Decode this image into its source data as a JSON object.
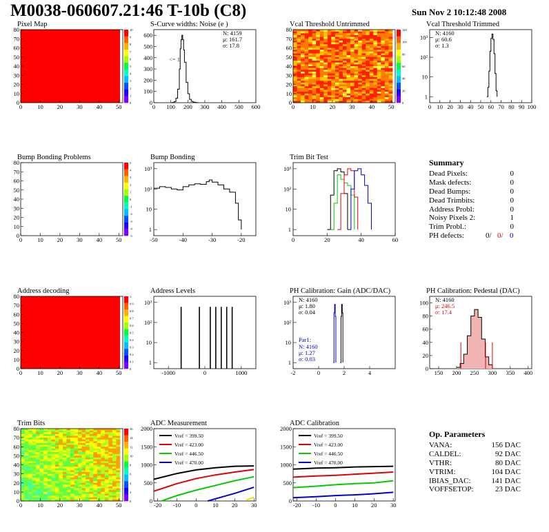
{
  "title": "M0038-060607.21:46 T-10b (C8)",
  "date": "Sun Nov  2 10:12:48 2008",
  "colors": {
    "black": "#000000",
    "red": "#e00000",
    "green": "#00cc00",
    "blue": "#0000d0",
    "yellow": "#e8e800",
    "hist_fill": "#f2b3b3"
  },
  "chart_data": [
    {
      "id": "pixel_map",
      "type": "heatmap",
      "title": "Pixel Map",
      "xlim": [
        0,
        52
      ],
      "ylim": [
        0,
        80
      ],
      "xticks": [
        0,
        10,
        20,
        30,
        40,
        50
      ],
      "yticks": [
        0,
        10,
        20,
        30,
        40,
        50,
        60,
        70,
        80
      ],
      "fill": "uniform_red",
      "colorbar": [
        0,
        1,
        2,
        3,
        4,
        5,
        6,
        7,
        8,
        9,
        10
      ]
    },
    {
      "id": "noise",
      "type": "line",
      "title": "S-Curve widths: Noise (e )",
      "xlim": [
        0,
        600
      ],
      "ylim": [
        0,
        650
      ],
      "xticks": [
        0,
        100,
        200,
        300,
        400,
        500,
        600
      ],
      "yticks": [
        0,
        100,
        200,
        300,
        400,
        500,
        600
      ],
      "stats": [
        "N: 4159",
        "μ: 161.7",
        "σ: 17.8"
      ],
      "annotation": "<= 1",
      "x": [
        100,
        110,
        120,
        130,
        140,
        150,
        155,
        160,
        165,
        170,
        175,
        180,
        190,
        200,
        210,
        220,
        230,
        240,
        250,
        260
      ],
      "y": [
        0,
        2,
        10,
        40,
        120,
        300,
        480,
        560,
        600,
        560,
        470,
        360,
        180,
        80,
        30,
        12,
        5,
        2,
        1,
        0
      ]
    },
    {
      "id": "vcal_untrimmed",
      "type": "heatmap",
      "title": "Vcal Threshold Untrimmed",
      "xlim": [
        0,
        52
      ],
      "ylim": [
        0,
        80
      ],
      "xticks": [
        0,
        10,
        20,
        30,
        40,
        50
      ],
      "yticks": [
        0,
        10,
        20,
        30,
        40,
        50,
        60,
        70,
        80
      ],
      "fill": "random_red_yellow",
      "colorbar": [
        0,
        20,
        40,
        60,
        80,
        100,
        120
      ]
    },
    {
      "id": "vcal_trimmed",
      "type": "line",
      "title": "Vcal Threshold Trimmed",
      "logy": true,
      "xlim": [
        0,
        100
      ],
      "ylim": [
        0.5,
        2500
      ],
      "xticks": [
        0,
        10,
        20,
        30,
        40,
        50,
        60,
        70,
        80,
        90,
        100
      ],
      "ytick_labels": [
        "1",
        "10",
        "10²",
        "10³"
      ],
      "stats": [
        "N: 4160",
        "μ: 60.6",
        "σ:  1.3"
      ],
      "x": [
        56,
        57,
        58,
        59,
        60,
        61,
        62,
        63,
        64,
        65,
        66
      ],
      "y": [
        1,
        3,
        20,
        200,
        900,
        1500,
        800,
        150,
        15,
        2,
        1
      ]
    },
    {
      "id": "bump_problems",
      "type": "heatmap",
      "title": "Bump Bonding Problems",
      "xlim": [
        0,
        52
      ],
      "ylim": [
        0,
        80
      ],
      "xticks": [
        0,
        10,
        20,
        30,
        40,
        50
      ],
      "yticks": [
        0,
        10,
        20,
        30,
        40,
        50,
        60,
        70,
        80
      ],
      "fill": "empty",
      "colorbar": [
        -5,
        -4,
        -3,
        -2,
        -1,
        0,
        1,
        2,
        3,
        4,
        5
      ]
    },
    {
      "id": "bump_bonding",
      "type": "line",
      "title": "Bump Bonding",
      "logy": true,
      "xlim": [
        -50,
        -15
      ],
      "ylim": [
        0.5,
        2000
      ],
      "xticks": [
        -50,
        -40,
        -30,
        -20
      ],
      "ytick_labels": [
        "1",
        "10",
        "10²",
        "10³"
      ],
      "x": [
        -50,
        -48,
        -46,
        -44,
        -42,
        -40,
        -38,
        -36,
        -34,
        -32,
        -31,
        -30,
        -28,
        -26,
        -24,
        -22,
        -21,
        -20
      ],
      "y": [
        110,
        130,
        120,
        100,
        90,
        130,
        160,
        180,
        170,
        230,
        280,
        220,
        160,
        100,
        70,
        20,
        3,
        1
      ]
    },
    {
      "id": "trim_bits",
      "type": "line",
      "title": "Trim Bit Test",
      "logy": true,
      "xlim": [
        0,
        60
      ],
      "ylim": [
        0.5,
        2000
      ],
      "xticks": [
        0,
        20,
        40,
        60
      ],
      "ytick_labels": [
        "1",
        "10",
        "10²",
        "10³"
      ],
      "series": [
        {
          "color": "black",
          "x": [
            20,
            22,
            24,
            26,
            28,
            30,
            32
          ],
          "y": [
            1,
            50,
            800,
            1000,
            700,
            60,
            1
          ]
        },
        {
          "color": "green",
          "x": [
            22,
            24,
            26,
            28,
            30,
            32,
            34,
            36
          ],
          "y": [
            1,
            20,
            500,
            300,
            200,
            150,
            50,
            1
          ]
        },
        {
          "color": "red",
          "x": [
            26,
            28,
            30,
            32,
            34,
            36,
            38
          ],
          "y": [
            1,
            60,
            500,
            1000,
            800,
            40,
            1
          ]
        },
        {
          "color": "blue",
          "x": [
            32,
            34,
            36,
            38,
            40,
            42,
            44,
            46
          ],
          "y": [
            1,
            100,
            800,
            1000,
            500,
            150,
            20,
            1
          ]
        }
      ]
    },
    {
      "id": "address_decoding",
      "type": "heatmap",
      "title": "Address decoding",
      "xlim": [
        0,
        52
      ],
      "ylim": [
        0,
        80
      ],
      "xticks": [
        0,
        10,
        20,
        30,
        40,
        50
      ],
      "yticks": [
        0,
        10,
        20,
        30,
        40,
        50,
        60,
        70,
        80
      ],
      "fill": "uniform_red",
      "colorbar": [
        0,
        0.1,
        0.2,
        0.3,
        0.4,
        0.5,
        0.6,
        0.7,
        0.8,
        0.9,
        1
      ]
    },
    {
      "id": "address_levels",
      "type": "bar",
      "title": "Address Levels",
      "logy": true,
      "xlim": [
        -1400,
        1400
      ],
      "ylim": [
        0.5,
        2000
      ],
      "xticks": [
        -1000,
        0,
        1000
      ],
      "ytick_labels": [
        "1",
        "10",
        "10²",
        "10³"
      ],
      "x": [
        -650,
        -150,
        150,
        300,
        450,
        600,
        750
      ],
      "y": [
        600,
        600,
        600,
        600,
        600,
        600,
        600
      ]
    },
    {
      "id": "ph_gain",
      "type": "line",
      "title": "PH Calibration: Gain (ADC/DAC)",
      "logy": true,
      "xlim": [
        -2,
        6
      ],
      "ylim": [
        0.5,
        2000
      ],
      "xticks": [
        -2,
        0,
        2,
        4
      ],
      "ytick_labels": [
        "1",
        "10",
        "10²",
        "10³"
      ],
      "stats": [
        "N: 4160",
        "μ: 1.80",
        "σ: 0.04"
      ],
      "stats2_title": "Par1:",
      "stats2": [
        "N: 4160",
        "μ: 1.27",
        "σ: 0.03"
      ],
      "series": [
        {
          "color": "black",
          "x": [
            1.7,
            1.75,
            1.8,
            1.85,
            1.9
          ],
          "y": [
            1,
            200,
            800,
            300,
            1
          ]
        },
        {
          "color": "blue",
          "x": [
            1.15,
            1.2,
            1.25,
            1.3,
            1.35
          ],
          "y": [
            1,
            300,
            800,
            200,
            1
          ]
        }
      ]
    },
    {
      "id": "ph_pedestal",
      "type": "line",
      "title": "PH Calibration: Pedestal (DAC)",
      "xlim": [
        125,
        410
      ],
      "ylim": [
        0,
        110
      ],
      "xticks": [
        150,
        200,
        250,
        300,
        350,
        400
      ],
      "yticks": [
        0,
        20,
        40,
        60,
        80,
        100
      ],
      "stats": [
        "N: 4160",
        "μ: 246.5",
        "σ: 17.4"
      ],
      "x": [
        200,
        210,
        220,
        230,
        240,
        250,
        260,
        270,
        280,
        290,
        300
      ],
      "y": [
        2,
        8,
        22,
        50,
        80,
        90,
        78,
        45,
        18,
        6,
        1
      ],
      "cut_lines": [
        212,
        281,
        300
      ]
    },
    {
      "id": "trim_bits_map",
      "type": "heatmap",
      "title": "Trim Bits",
      "xlim": [
        0,
        52
      ],
      "ylim": [
        0,
        80
      ],
      "xticks": [
        0,
        10,
        20,
        30,
        40,
        50
      ],
      "yticks": [
        0,
        10,
        20,
        30,
        40,
        50,
        60,
        70,
        80
      ],
      "fill": "random_green",
      "colorbar": [
        0,
        2,
        4,
        6,
        8,
        10,
        12,
        14,
        16
      ]
    },
    {
      "id": "adc_measurement",
      "type": "line",
      "title": "ADC Measurement",
      "xlim": [
        -22,
        31
      ],
      "ylim": [
        0,
        2000
      ],
      "xticks": [
        -20,
        -10,
        0,
        10,
        20,
        30
      ],
      "yticks": [
        0,
        500,
        1000,
        1500,
        2000
      ],
      "series": [
        {
          "name": "Vref = 399.50",
          "color": "black",
          "x": [
            -22,
            -10,
            0,
            10,
            20,
            30
          ],
          "y": [
            600,
            760,
            860,
            920,
            960,
            970
          ]
        },
        {
          "name": "Vref = 423.00",
          "color": "red",
          "x": [
            -22,
            -10,
            0,
            10,
            20,
            30
          ],
          "y": [
            270,
            480,
            620,
            720,
            800,
            870
          ]
        },
        {
          "name": "Vref = 446.50",
          "color": "green",
          "x": [
            -18,
            -10,
            0,
            10,
            20,
            30
          ],
          "y": [
            0,
            150,
            300,
            430,
            560,
            670
          ]
        },
        {
          "name": "Vref = 470.00",
          "color": "blue",
          "x": [
            6,
            10,
            20,
            30
          ],
          "y": [
            0,
            60,
            210,
            380
          ]
        },
        {
          "color": "yellow",
          "x": [
            26,
            30
          ],
          "y": [
            30,
            100
          ]
        }
      ]
    },
    {
      "id": "adc_calibration",
      "type": "line",
      "title": "ADC Calibration",
      "xlim": [
        -22,
        31
      ],
      "ylim": [
        0,
        2000
      ],
      "xticks": [
        -20,
        -10,
        0,
        10,
        20,
        30
      ],
      "yticks": [
        0,
        500,
        1000,
        1500,
        2000
      ],
      "series": [
        {
          "name": "Vref = 399.50",
          "color": "black",
          "x": [
            -22,
            -10,
            0,
            10,
            20,
            30
          ],
          "y": [
            880,
            910,
            920,
            940,
            950,
            960
          ]
        },
        {
          "name": "Vref = 423.00",
          "color": "red",
          "x": [
            -22,
            -10,
            0,
            10,
            20,
            30
          ],
          "y": [
            660,
            690,
            710,
            740,
            770,
            800
          ]
        },
        {
          "name": "Vref = 446.50",
          "color": "green",
          "x": [
            -22,
            -10,
            0,
            10,
            20,
            30
          ],
          "y": [
            370,
            410,
            450,
            480,
            500,
            560
          ]
        },
        {
          "name": "Vref = 470.00",
          "color": "blue",
          "x": [
            -22,
            -10,
            0,
            10,
            20,
            30
          ],
          "y": [
            90,
            120,
            150,
            170,
            200,
            240
          ]
        }
      ]
    }
  ],
  "summary": {
    "title": "Summary",
    "rows": [
      {
        "label": "Dead Pixels:",
        "value": "0"
      },
      {
        "label": "Mask defects:",
        "value": "0"
      },
      {
        "label": "Dead Bumps:",
        "value": "0"
      },
      {
        "label": "Dead Trimbits:",
        "value": "0"
      },
      {
        "label": "Address Probl:",
        "value": "0"
      },
      {
        "label": "Noisy Pixels 2:",
        "value": "1"
      },
      {
        "label": "Trim Probl.:",
        "value": "0"
      }
    ],
    "ph_label": "PH defects:",
    "ph_values": [
      {
        "text": "0/",
        "color": "black"
      },
      {
        "text": "0/",
        "color": "red"
      },
      {
        "text": "0",
        "color": "blue"
      }
    ]
  },
  "op_params": {
    "title": "Op. Parameters",
    "rows": [
      {
        "label": "VANA:",
        "value": "156 DAC"
      },
      {
        "label": "CALDEL:",
        "value": "92 DAC"
      },
      {
        "label": "VTHR:",
        "value": "80 DAC"
      },
      {
        "label": "VTRIM:",
        "value": "104 DAC"
      },
      {
        "label": "IBIAS_DAC:",
        "value": "141 DAC"
      },
      {
        "label": "VOFFSETOP:",
        "value": "23 DAC"
      }
    ]
  }
}
